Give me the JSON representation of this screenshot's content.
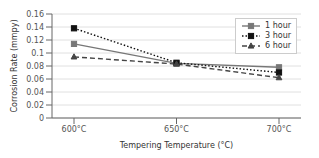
{
  "chart_data": {
    "type": "line",
    "x_label": "Tempering Temperature (°C)",
    "y_label": "Corrosion Rate (mmpy)",
    "categories": [
      "600°C",
      "650°C",
      "700°C"
    ],
    "series": [
      {
        "name": "1 hour",
        "color": "#777777",
        "marker": "square",
        "line_style": "solid",
        "values": [
          0.114,
          0.084,
          0.078
        ]
      },
      {
        "name": "3 hour",
        "color": "#111111",
        "marker": "square",
        "line_style": "dotted",
        "values": [
          0.138,
          0.085,
          0.07
        ]
      },
      {
        "name": "6 hour",
        "color": "#444444",
        "marker": "triangle",
        "line_style": "dashed",
        "values": [
          0.094,
          0.083,
          0.062
        ]
      }
    ],
    "ylim": [
      0,
      0.16
    ],
    "yticks": [
      0,
      0.02,
      0.04,
      0.06,
      0.08,
      0.1,
      0.12,
      0.14,
      0.16
    ],
    "grid": true,
    "legend": "upper right"
  }
}
